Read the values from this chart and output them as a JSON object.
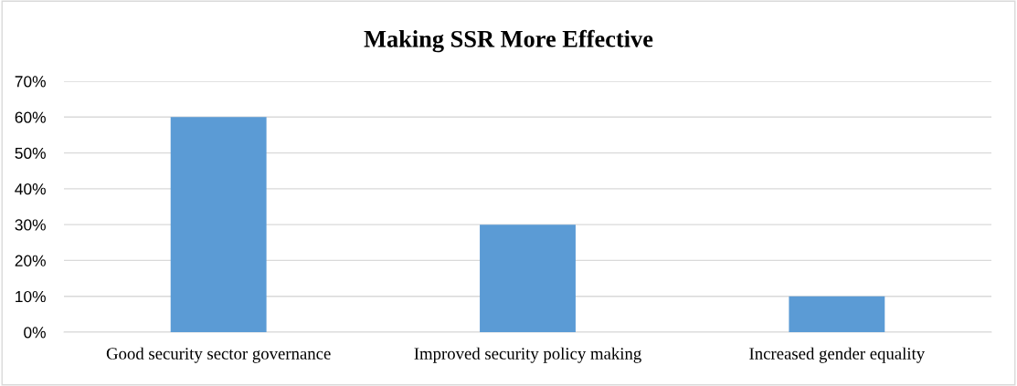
{
  "chart_data": {
    "type": "bar",
    "title": "Making SSR More Effective",
    "categories": [
      "Good security sector governance",
      "Improved security policy making",
      "Increased gender equality"
    ],
    "values": [
      60,
      30,
      10
    ],
    "color": "#5b9bd5",
    "ylim": [
      0,
      70
    ],
    "yticks": [
      {
        "value": 0,
        "label": "0%"
      },
      {
        "value": 10,
        "label": "10%"
      },
      {
        "value": 20,
        "label": "20%"
      },
      {
        "value": 30,
        "label": "30%"
      },
      {
        "value": 40,
        "label": "40%"
      },
      {
        "value": 50,
        "label": "50%"
      },
      {
        "value": 60,
        "label": "60%"
      },
      {
        "value": 70,
        "label": "70%"
      }
    ],
    "grid": "y",
    "legend": false
  }
}
